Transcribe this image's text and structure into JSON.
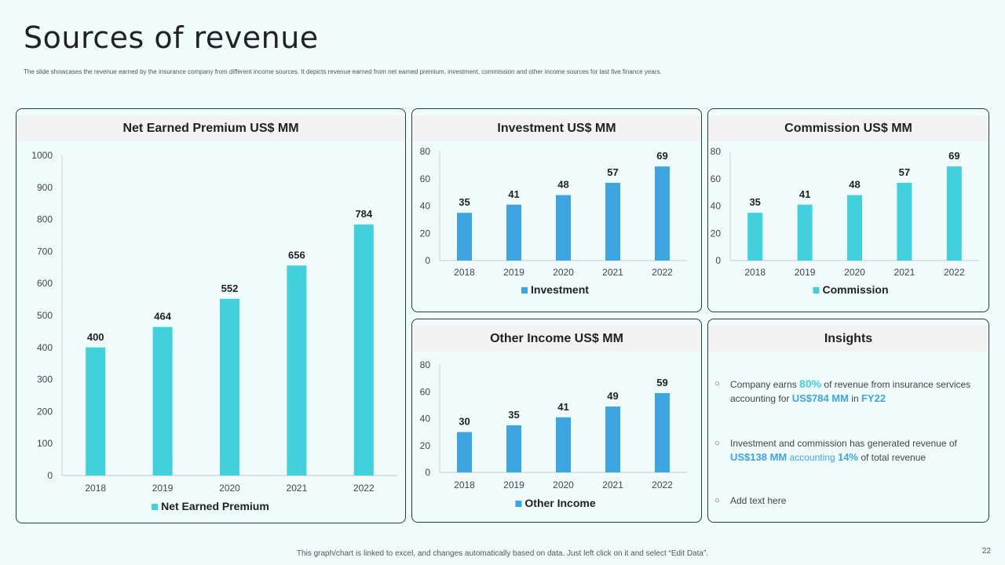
{
  "title": "Sources of revenue",
  "subtitle": "The slide showcases the revenue earned by the insurance company from different income sources. It depicts revenue earned from net earned premium, investment, commission and other income sources for last five finance years.",
  "footer": "This graph/chart is linked to excel, and changes automatically based on data. Just left click on it and select “Edit Data”.",
  "page_number": "22",
  "colors": {
    "teal": "#41d0dc",
    "blue": "#3ea5e0"
  },
  "chart_data": [
    {
      "type": "bar",
      "title": "Net Earned Premium US$ MM",
      "categories": [
        "2018",
        "2019",
        "2020",
        "2021",
        "2022"
      ],
      "series": [
        {
          "name": "Net Earned Premium",
          "values": [
            400,
            464,
            552,
            656,
            784
          ]
        }
      ],
      "ylim": [
        0,
        1000
      ],
      "yticks": [
        0,
        100,
        200,
        300,
        400,
        500,
        600,
        700,
        800,
        900,
        1000
      ],
      "color": "#41d0dc",
      "legend": "bottom"
    },
    {
      "type": "bar",
      "title": "Investment US$ MM",
      "categories": [
        "2018",
        "2019",
        "2020",
        "2021",
        "2022"
      ],
      "series": [
        {
          "name": "Investment",
          "values": [
            35,
            41,
            48,
            57,
            69
          ]
        }
      ],
      "ylim": [
        0,
        80
      ],
      "yticks": [
        0,
        20,
        40,
        60,
        80
      ],
      "color": "#3ea5e0",
      "legend": "bottom"
    },
    {
      "type": "bar",
      "title": "Commission US$ MM",
      "categories": [
        "2018",
        "2019",
        "2020",
        "2021",
        "2022"
      ],
      "series": [
        {
          "name": "Commission",
          "values": [
            35,
            41,
            48,
            57,
            69
          ]
        }
      ],
      "ylim": [
        0,
        80
      ],
      "yticks": [
        0,
        20,
        40,
        60,
        80
      ],
      "color": "#41d0dc",
      "legend": "bottom"
    },
    {
      "type": "bar",
      "title": "Other Income US$ MM",
      "categories": [
        "2018",
        "2019",
        "2020",
        "2021",
        "2022"
      ],
      "series": [
        {
          "name": "Other Income",
          "values": [
            30,
            35,
            41,
            49,
            59
          ]
        }
      ],
      "ylim": [
        0,
        80
      ],
      "yticks": [
        0,
        20,
        40,
        60,
        80
      ],
      "color": "#3ea5e0",
      "legend": "bottom"
    }
  ],
  "insights": {
    "title": "Insights",
    "items": [
      {
        "parts": [
          "Company earns ",
          "80%",
          " of revenue from insurance services accounting for ",
          "US$784 MM",
          " in ",
          "FY22"
        ]
      },
      {
        "parts": [
          "Investment and commission has generated revenue of ",
          "US$138 MM",
          " accounting ",
          "14%",
          " of total revenue"
        ]
      },
      {
        "parts": [
          "Add text here"
        ]
      }
    ]
  }
}
